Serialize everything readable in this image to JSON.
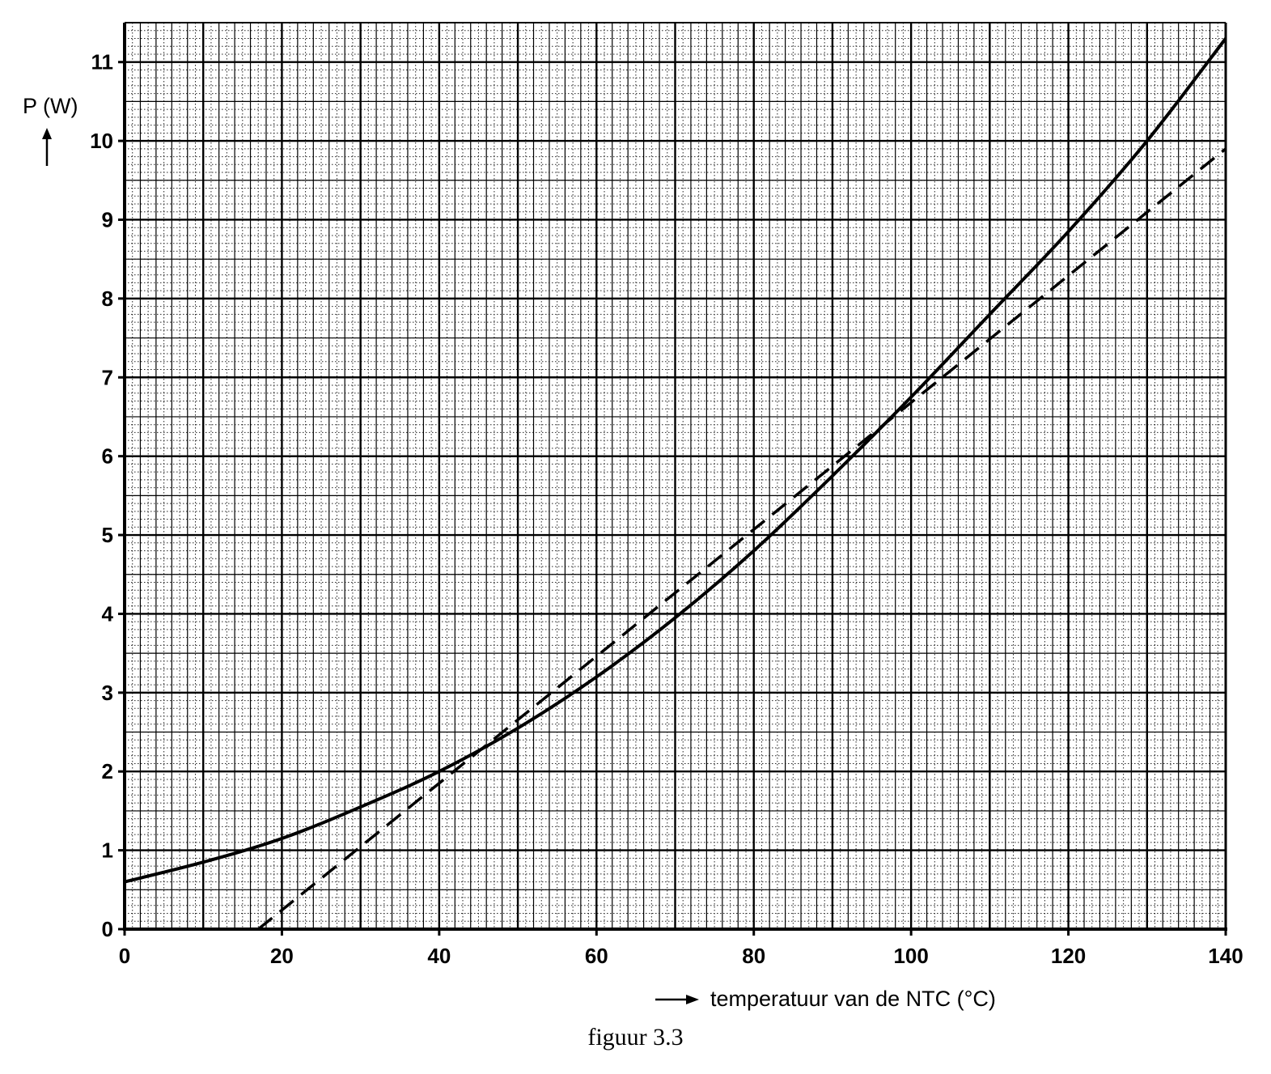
{
  "chart_data": {
    "type": "line",
    "xlabel": "temperatuur van de NTC (°C)",
    "ylabel": "P (W)",
    "xlim": [
      0,
      140
    ],
    "ylim": [
      0,
      11.5
    ],
    "x_ticks": [
      "0",
      "20",
      "40",
      "60",
      "80",
      "100",
      "120",
      "140"
    ],
    "y_ticks": [
      "0",
      "1",
      "2",
      "3",
      "4",
      "5",
      "6",
      "7",
      "8",
      "9",
      "10",
      "11"
    ],
    "grid": true,
    "series": [
      {
        "style": "solid",
        "x": [
          0,
          10,
          20,
          30,
          40,
          50,
          60,
          70,
          80,
          90,
          100,
          110,
          120,
          130,
          140
        ],
        "y": [
          0.6,
          0.85,
          1.15,
          1.55,
          2.0,
          2.55,
          3.2,
          3.95,
          4.8,
          5.75,
          6.75,
          7.8,
          8.85,
          10.0,
          11.3
        ]
      },
      {
        "style": "dashed",
        "x": [
          17,
          140
        ],
        "y": [
          0,
          9.9
        ]
      }
    ]
  },
  "caption": "figuur 3.3"
}
